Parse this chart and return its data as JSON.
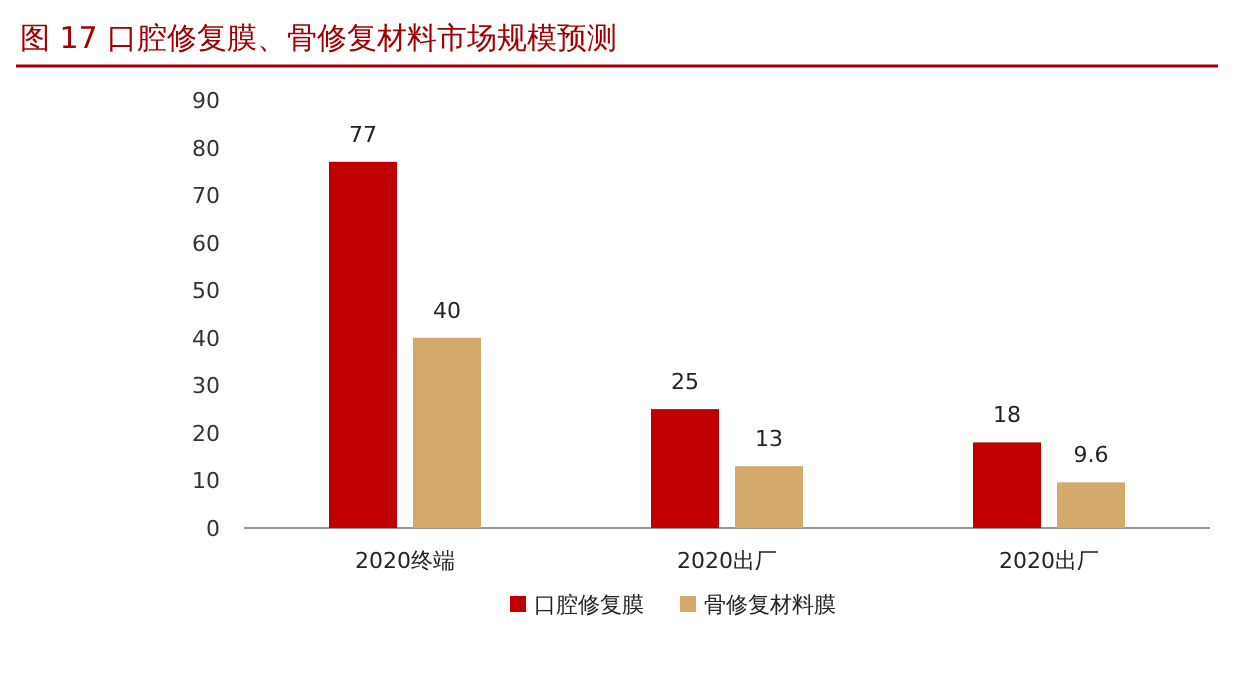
{
  "chart_data": {
    "type": "bar",
    "title": "图 17 口腔修复膜、骨修复材料市场规模预测",
    "categories": [
      "2020终端",
      "2020出厂",
      "2020出厂"
    ],
    "series": [
      {
        "name": "口腔修复膜",
        "color": "#c00000",
        "values": [
          77,
          25,
          18
        ]
      },
      {
        "name": "骨修复材料膜",
        "color": "#d4aa6c",
        "values": [
          40,
          13,
          9.6
        ]
      }
    ],
    "ylim": [
      0,
      90
    ],
    "yticks": [
      0,
      10,
      20,
      30,
      40,
      50,
      60,
      70,
      80,
      90
    ],
    "data_labels": true,
    "legend": "bottom",
    "grid": false
  }
}
